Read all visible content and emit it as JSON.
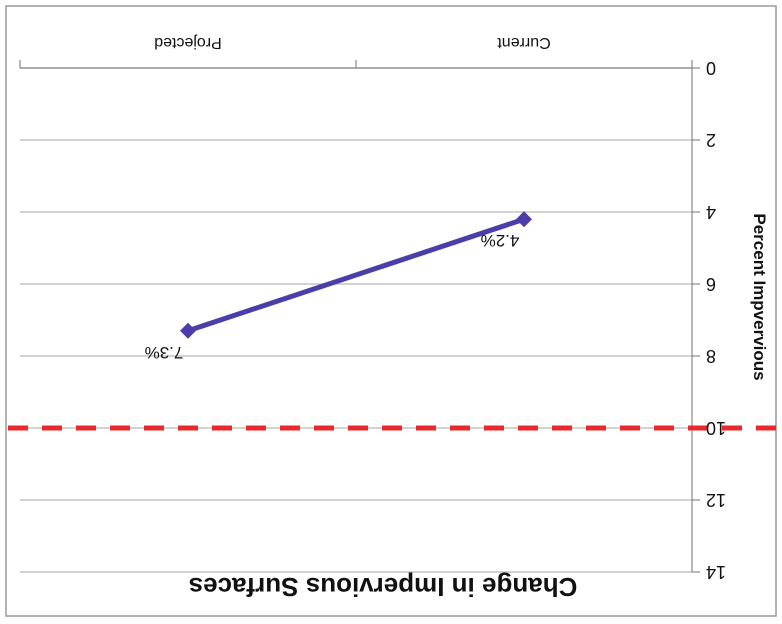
{
  "chart_data": {
    "type": "line",
    "title": "Change in Impervious Surfaces",
    "ylabel": "Percent Impvervious",
    "xlabel": "",
    "categories": [
      "Current",
      "Projected"
    ],
    "series": [
      {
        "values": [
          4.2,
          7.3
        ],
        "labels": [
          "4.2%",
          "7.3%"
        ],
        "color": "#4b3ea8"
      }
    ],
    "reference_line": {
      "value": 10,
      "color": "#e8282b",
      "style": "dashed"
    },
    "ylim": [
      0,
      14
    ],
    "yticks": [
      "0",
      "2",
      "4",
      "6",
      "8",
      "10",
      "12",
      "14"
    ],
    "grid": true,
    "rotation_degrees": 180
  }
}
